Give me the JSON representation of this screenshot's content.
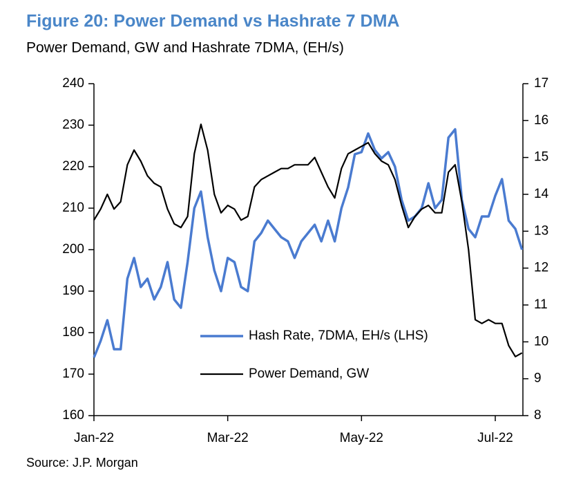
{
  "chart_data": {
    "type": "line",
    "title": "Figure 20: Power Demand vs Hashrate 7 DMA",
    "subtitle": "Power Demand, GW and Hashrate 7DMA, (EH/s)",
    "source": "Source: J.P. Morgan",
    "categories": [
      "Jan-22",
      null,
      null,
      null,
      null,
      null,
      null,
      null,
      null,
      null,
      null,
      null,
      null,
      null,
      null,
      null,
      null,
      null,
      null,
      null,
      "Mar-22",
      null,
      null,
      null,
      null,
      null,
      null,
      null,
      null,
      null,
      null,
      null,
      null,
      null,
      null,
      null,
      null,
      null,
      null,
      null,
      "May-22",
      null,
      null,
      null,
      null,
      null,
      null,
      null,
      null,
      null,
      null,
      null,
      null,
      null,
      null,
      null,
      null,
      null,
      null,
      null,
      "Jul-22",
      null,
      null,
      null,
      null
    ],
    "series": [
      {
        "name": "Hash Rate, 7DMA, EH/s (LHS)",
        "color": "#4a7bd0",
        "axis": "y",
        "values": [
          174,
          178,
          183,
          176,
          176,
          193,
          198,
          191,
          193,
          188,
          191,
          197,
          188,
          186,
          197,
          210,
          214,
          203,
          195,
          190,
          198,
          197,
          191,
          190,
          202,
          204,
          207,
          205,
          203,
          202,
          198,
          202,
          204,
          206,
          202,
          207,
          202,
          210,
          215,
          223,
          223.5,
          228,
          224,
          222,
          223.5,
          220,
          212,
          207,
          208,
          210,
          216,
          210,
          212,
          227,
          229,
          212,
          205,
          203,
          208,
          208,
          213,
          217,
          207,
          205,
          200
        ]
      },
      {
        "name": "Power Demand, GW",
        "color": "#000000",
        "axis": "y2",
        "values": [
          13.3,
          13.6,
          14.0,
          13.6,
          13.8,
          14.8,
          15.2,
          14.9,
          14.5,
          14.3,
          14.2,
          13.6,
          13.2,
          13.1,
          13.4,
          15.1,
          15.9,
          15.2,
          14.0,
          13.5,
          13.7,
          13.6,
          13.3,
          13.4,
          14.2,
          14.4,
          14.5,
          14.6,
          14.7,
          14.7,
          14.8,
          14.8,
          14.8,
          15.0,
          14.6,
          14.2,
          13.9,
          14.7,
          15.1,
          15.2,
          15.3,
          15.4,
          15.1,
          14.9,
          14.8,
          14.4,
          13.7,
          13.1,
          13.4,
          13.6,
          13.7,
          13.5,
          13.5,
          14.6,
          14.8,
          13.8,
          12.5,
          10.6,
          10.5,
          10.6,
          10.5,
          10.5,
          9.9,
          9.6,
          9.7
        ]
      }
    ],
    "ylim": [
      160,
      240
    ],
    "yticks": [
      160,
      170,
      180,
      190,
      200,
      210,
      220,
      230,
      240
    ],
    "y2lim": [
      8,
      17
    ],
    "y2ticks": [
      8,
      9,
      10,
      11,
      12,
      13,
      14,
      15,
      16,
      17
    ],
    "grid": false,
    "legend": "lower center"
  }
}
